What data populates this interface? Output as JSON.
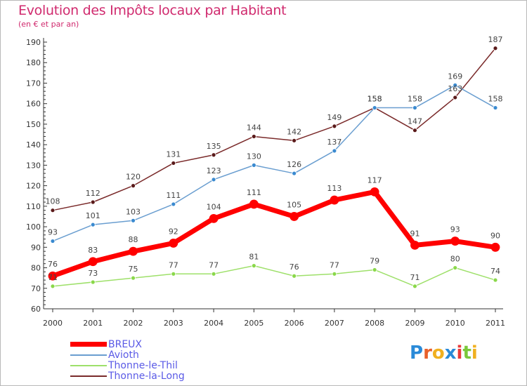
{
  "header": {
    "title": "Evolution des Impôts locaux par Habitant",
    "subtitle": "(en € et par an)"
  },
  "chart_data": {
    "type": "line",
    "title": "Evolution des Impôts locaux par Habitant",
    "ylabel": "(en € et par an)",
    "xlabel": "",
    "categories": [
      "2000",
      "2001",
      "2002",
      "2003",
      "2004",
      "2005",
      "2006",
      "2007",
      "2008",
      "2009",
      "2010",
      "2011"
    ],
    "ylim": [
      60,
      190
    ],
    "yticks": [
      60,
      70,
      80,
      90,
      100,
      110,
      120,
      130,
      140,
      150,
      160,
      170,
      180,
      190
    ],
    "grid": false,
    "legend_position": "bottom-left",
    "series": [
      {
        "name": "BREUX",
        "color": "#ff0000",
        "values": [
          76,
          83,
          88,
          92,
          104,
          111,
          105,
          113,
          117,
          91,
          93,
          90
        ]
      },
      {
        "name": "Avioth",
        "color": "#6a9ed0",
        "values": [
          93,
          101,
          103,
          111,
          123,
          130,
          126,
          137,
          158,
          158,
          169,
          158
        ]
      },
      {
        "name": "Thonne-le-Thil",
        "color": "#9ee06a",
        "values": [
          71,
          73,
          75,
          77,
          77,
          81,
          76,
          77,
          79,
          71,
          80,
          74
        ]
      },
      {
        "name": "Thonne-la-Long",
        "color": "#7a2a2a",
        "values": [
          108,
          112,
          120,
          131,
          135,
          144,
          142,
          149,
          158,
          147,
          163,
          187
        ]
      }
    ]
  },
  "legend": {
    "items": [
      {
        "label": "BREUX"
      },
      {
        "label": "Avioth"
      },
      {
        "label": "Thonne-le-Thil"
      },
      {
        "label": "Thonne-la-Long"
      }
    ]
  },
  "branding": {
    "logo_text": "Proxiti"
  }
}
